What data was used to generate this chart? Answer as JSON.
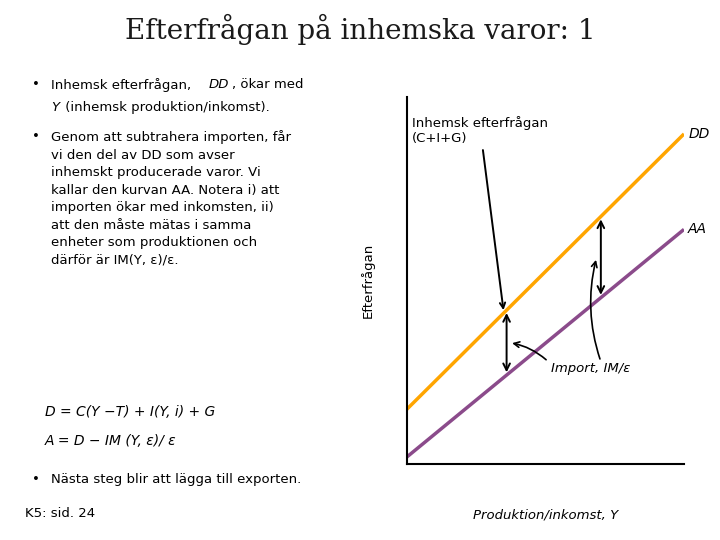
{
  "title": "Efterfrågan på inhemska varor: 1",
  "title_fontsize": 20,
  "header_bar_color": "#1c3a1c",
  "background_color": "#ffffff",
  "bullet1a": "Inhemsk efterfrågan, ",
  "bullet1b": "DD",
  "bullet1c": ", ökar med",
  "bullet1d": "Y",
  "bullet1e": " (inhemsk produktion/inkomst).",
  "bullet2": "Genom att subtrahera importen, får\nvi den del av DD som avser\ninhemskt producerade varor. Vi\nkallar den kurvan AA. Notera i) att\nimporten ökar med inkomsten, ii)\natt den måste mätas i samma\nenheter som produktionen och\ndärför är IM(Y, ε)/ε.",
  "formula1": "D = C(Y −T) + I(Y, i) + G",
  "formula2": "A = D − IM (Y, ε)/ ε",
  "bullet3": "Nästa steg blir att lägga till exporten.",
  "footer": "K5: sid. 24",
  "ylabel_chart": "Efterfrågan",
  "xlabel_chart": "Produktion/inkomst, Y",
  "dd_label": "DD",
  "aa_label": "AA",
  "dd_color": "#FFA500",
  "aa_color": "#8B4B8B",
  "chart_label_top": "Inhemsk efterfrågan\n(C+I+G)",
  "import_label": "Import, IM/ε",
  "dd_intercept": 1.5,
  "dd_slope": 0.75,
  "aa_intercept": 0.2,
  "aa_slope": 0.62
}
